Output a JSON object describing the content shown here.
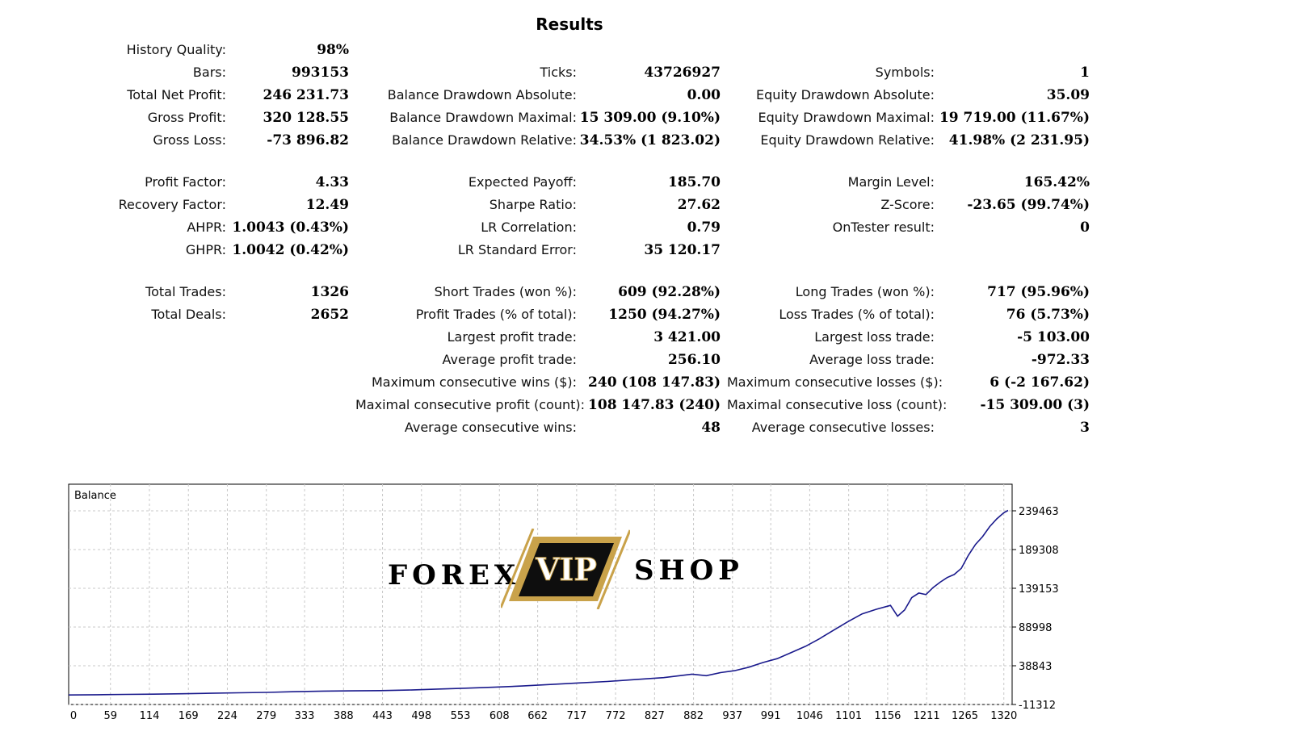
{
  "title": "Results",
  "stats": {
    "history_quality": {
      "label": "History Quality:",
      "value": "98%"
    },
    "bars": {
      "label": "Bars:",
      "value": "993153"
    },
    "ticks": {
      "label": "Ticks:",
      "value": "43726927"
    },
    "symbols": {
      "label": "Symbols:",
      "value": "1"
    },
    "total_net_profit": {
      "label": "Total Net Profit:",
      "value": "246 231.73"
    },
    "balance_dd_absolute": {
      "label": "Balance Drawdown Absolute:",
      "value": "0.00"
    },
    "equity_dd_absolute": {
      "label": "Equity Drawdown Absolute:",
      "value": "35.09"
    },
    "gross_profit": {
      "label": "Gross Profit:",
      "value": "320 128.55"
    },
    "balance_dd_maximal": {
      "label": "Balance Drawdown Maximal:",
      "value": "15 309.00 (9.10%)"
    },
    "equity_dd_maximal": {
      "label": "Equity Drawdown Maximal:",
      "value": "19 719.00 (11.67%)"
    },
    "gross_loss": {
      "label": "Gross Loss:",
      "value": "-73 896.82"
    },
    "balance_dd_relative": {
      "label": "Balance Drawdown Relative:",
      "value": "34.53% (1 823.02)"
    },
    "equity_dd_relative": {
      "label": "Equity Drawdown Relative:",
      "value": "41.98% (2 231.95)"
    },
    "profit_factor": {
      "label": "Profit Factor:",
      "value": "4.33"
    },
    "expected_payoff": {
      "label": "Expected Payoff:",
      "value": "185.70"
    },
    "margin_level": {
      "label": "Margin Level:",
      "value": "165.42%"
    },
    "recovery_factor": {
      "label": "Recovery Factor:",
      "value": "12.49"
    },
    "sharpe_ratio": {
      "label": "Sharpe Ratio:",
      "value": "27.62"
    },
    "z_score": {
      "label": "Z-Score:",
      "value": "-23.65 (99.74%)"
    },
    "ahpr": {
      "label": "AHPR:",
      "value": "1.0043 (0.43%)"
    },
    "lr_correlation": {
      "label": "LR Correlation:",
      "value": "0.79"
    },
    "ontester_result": {
      "label": "OnTester result:",
      "value": "0"
    },
    "ghpr": {
      "label": "GHPR:",
      "value": "1.0042 (0.42%)"
    },
    "lr_standard_error": {
      "label": "LR Standard Error:",
      "value": "35 120.17"
    },
    "total_trades": {
      "label": "Total Trades:",
      "value": "1326"
    },
    "short_trades": {
      "label": "Short Trades (won %):",
      "value": "609 (92.28%)"
    },
    "long_trades": {
      "label": "Long Trades (won %):",
      "value": "717 (95.96%)"
    },
    "total_deals": {
      "label": "Total Deals:",
      "value": "2652"
    },
    "profit_trades": {
      "label": "Profit Trades (% of total):",
      "value": "1250 (94.27%)"
    },
    "loss_trades": {
      "label": "Loss Trades (% of total):",
      "value": "76 (5.73%)"
    },
    "largest_profit_trade": {
      "label": "Largest profit trade:",
      "value": "3 421.00"
    },
    "largest_loss_trade": {
      "label": "Largest loss trade:",
      "value": "-5 103.00"
    },
    "average_profit_trade": {
      "label": "Average profit trade:",
      "value": "256.10"
    },
    "average_loss_trade": {
      "label": "Average loss trade:",
      "value": "-972.33"
    },
    "max_consec_wins": {
      "label": "Maximum consecutive wins ($):",
      "value": "240 (108 147.83)"
    },
    "max_consec_losses": {
      "label": "Maximum consecutive losses ($):",
      "value": "6 (-2 167.62)"
    },
    "maximal_consec_profit": {
      "label": "Maximal consecutive profit (count):",
      "value": "108 147.83 (240)"
    },
    "maximal_consec_loss": {
      "label": "Maximal consecutive loss (count):",
      "value": "-15 309.00 (3)"
    },
    "avg_consec_wins": {
      "label": "Average consecutive wins:",
      "value": "48"
    },
    "avg_consec_losses": {
      "label": "Average consecutive losses:",
      "value": "3"
    }
  },
  "logo": {
    "left_text": "FOREX",
    "badge_text": "VIP",
    "right_text": "SHOP",
    "gold": "#c9a24a"
  },
  "chart_data": {
    "type": "line",
    "title": "Balance",
    "line_color": "#1a1a8c",
    "grid": true,
    "x_ticks": [
      "0",
      "59",
      "114",
      "169",
      "224",
      "279",
      "333",
      "388",
      "443",
      "498",
      "553",
      "608",
      "662",
      "717",
      "772",
      "827",
      "882",
      "937",
      "991",
      "1046",
      "1101",
      "1156",
      "1211",
      "1265",
      "1320"
    ],
    "y_ticks": [
      "-11312",
      "38843",
      "88998",
      "139153",
      "189308",
      "239463"
    ],
    "xlim": [
      0,
      1326
    ],
    "ylim": [
      -11312,
      239463
    ],
    "series": [
      {
        "x": [
          0,
          40,
          80,
          120,
          160,
          200,
          240,
          280,
          320,
          360,
          400,
          440,
          480,
          520,
          560,
          600,
          640,
          680,
          720,
          760,
          800,
          840,
          860,
          880,
          900,
          920,
          940,
          960,
          980,
          1000,
          1020,
          1040,
          1060,
          1080,
          1100,
          1120,
          1140,
          1160,
          1170,
          1180,
          1190,
          1200,
          1210,
          1220,
          1230,
          1240,
          1250,
          1260,
          1270,
          1280,
          1290,
          1300,
          1310,
          1320,
          1326
        ],
        "y": [
          1000,
          1300,
          1700,
          2100,
          2600,
          3200,
          3800,
          4400,
          5300,
          6000,
          6300,
          6700,
          7400,
          8600,
          9800,
          11000,
          12600,
          14600,
          16600,
          18500,
          21000,
          23500,
          25700,
          28000,
          26000,
          30000,
          32500,
          37000,
          43000,
          48000,
          56000,
          64000,
          74000,
          85000,
          96000,
          106000,
          112000,
          117000,
          103000,
          111000,
          127000,
          133000,
          131000,
          140000,
          147000,
          153000,
          157000,
          165000,
          182000,
          196000,
          206000,
          219000,
          229000,
          237000,
          240000
        ]
      }
    ]
  }
}
